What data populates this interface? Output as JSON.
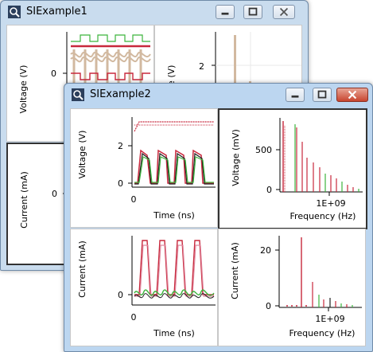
{
  "window1": {
    "title": "SIExample1",
    "panels": [
      {
        "ylabel": "Voltage (V)",
        "tick": "0"
      },
      {
        "ylabel": "Voltage (V)",
        "tick": "2"
      },
      {
        "ylabel": "Current (mA)",
        "tick": "0"
      }
    ]
  },
  "window2": {
    "title": "SIExample2",
    "panels": [
      {
        "ylabel": "Voltage (V)",
        "xlabel": "Time (ns)",
        "yticks": [
          "2",
          "0"
        ],
        "xtick": "0"
      },
      {
        "ylabel": "Voltage (mV)",
        "xlabel": "Frequency (Hz)",
        "yticks": [
          "500",
          "0"
        ],
        "xtick": "1E+09"
      },
      {
        "ylabel": "Current (mA)",
        "xlabel": "Time (ns)",
        "yticks": [
          "0"
        ],
        "xtick": "0"
      },
      {
        "ylabel": "Current (mA)",
        "xlabel": "Frequency (Hz)",
        "yticks": [
          "20",
          "0"
        ],
        "xtick": "1E+09"
      }
    ]
  },
  "colors": {
    "red": "#c8283c",
    "green": "#3cb43c",
    "dark": "#202020",
    "tan": "#d2b9a0",
    "pink": "#e08aa0"
  }
}
